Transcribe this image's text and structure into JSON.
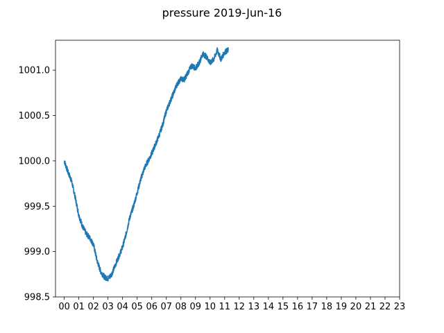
{
  "chart_data": {
    "type": "line",
    "title": "pressure 2019-Jun-16",
    "xlabel": "",
    "ylabel": "",
    "x_unit": "hour of day",
    "xlim": [
      -0.6,
      23.0
    ],
    "ylim": [
      998.5,
      1001.33
    ],
    "x_ticks": [
      "00",
      "01",
      "02",
      "03",
      "04",
      "05",
      "06",
      "07",
      "08",
      "09",
      "10",
      "11",
      "12",
      "13",
      "14",
      "15",
      "16",
      "17",
      "18",
      "19",
      "20",
      "21",
      "22",
      "23"
    ],
    "y_ticks": [
      "998.5",
      "999.0",
      "999.5",
      "1000.0",
      "1000.5",
      "1001.0"
    ],
    "grid": false,
    "series": [
      {
        "color": "#1f77b4",
        "x": [
          0.0,
          0.25,
          0.5,
          0.75,
          1.0,
          1.25,
          1.5,
          1.75,
          2.0,
          2.25,
          2.5,
          2.75,
          3.0,
          3.25,
          3.5,
          3.75,
          4.0,
          4.25,
          4.5,
          4.75,
          5.0,
          5.25,
          5.5,
          5.75,
          6.0,
          6.25,
          6.5,
          6.75,
          7.0,
          7.25,
          7.5,
          7.75,
          8.0,
          8.25,
          8.5,
          8.75,
          9.0,
          9.25,
          9.5,
          9.75,
          10.0,
          10.25,
          10.5,
          10.75,
          11.0,
          11.25
        ],
        "values": [
          1000.0,
          999.88,
          999.78,
          999.6,
          999.4,
          999.28,
          999.2,
          999.15,
          999.08,
          998.9,
          998.78,
          998.72,
          998.7,
          998.75,
          998.85,
          998.95,
          999.05,
          999.2,
          999.38,
          999.5,
          999.65,
          999.8,
          999.92,
          1000.0,
          1000.08,
          1000.18,
          1000.28,
          1000.4,
          1000.55,
          1000.65,
          1000.75,
          1000.85,
          1000.9,
          1000.9,
          1000.98,
          1001.05,
          1001.02,
          1001.08,
          1001.18,
          1001.15,
          1001.08,
          1001.12,
          1001.22,
          1001.12,
          1001.2,
          1001.22
        ]
      }
    ]
  }
}
